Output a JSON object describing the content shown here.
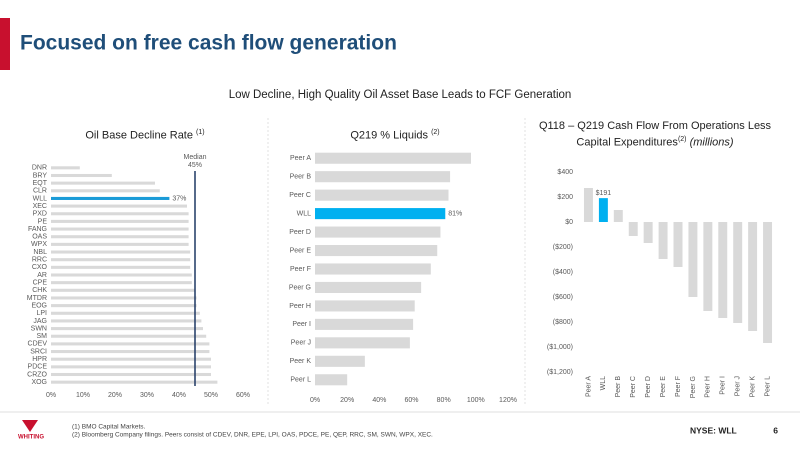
{
  "header": {
    "title": "Focused on free cash flow generation",
    "subtitle": "Low Decline, High Quality Oil Asset Base Leads to FCF Generation"
  },
  "chart_data": [
    {
      "type": "hbar",
      "title": "Oil Base Decline Rate",
      "title_note": "(1)",
      "categories": [
        "DNR",
        "BRY",
        "EQT",
        "CLR",
        "WLL",
        "XEC",
        "PXD",
        "PE",
        "FANG",
        "OAS",
        "WPX",
        "NBL",
        "RRC",
        "CXO",
        "AR",
        "CPE",
        "CHK",
        "MTDR",
        "EOG",
        "LPI",
        "JAG",
        "SWN",
        "SM",
        "CDEV",
        "SRCI",
        "HPR",
        "PDCE",
        "CRZO",
        "XOG"
      ],
      "values": [
        9,
        19,
        32.5,
        34,
        37,
        42.5,
        43,
        43,
        43,
        43,
        43,
        43.5,
        43.5,
        43.5,
        44,
        44,
        45,
        45.5,
        45.5,
        46.5,
        47,
        47.5,
        48.5,
        49.5,
        49.5,
        50,
        50,
        50,
        52
      ],
      "value_labels": [
        null,
        null,
        null,
        null,
        "37%",
        null,
        null,
        null,
        null,
        null,
        null,
        null,
        null,
        null,
        null,
        null,
        null,
        null,
        null,
        null,
        null,
        null,
        null,
        null,
        null,
        null,
        null,
        null,
        null
      ],
      "colors": [
        "#d9d9d9",
        "#d9d9d9",
        "#d9d9d9",
        "#d9d9d9",
        "#1a9bd7",
        "#d9d9d9",
        "#d9d9d9",
        "#d9d9d9",
        "#d9d9d9",
        "#d9d9d9",
        "#d9d9d9",
        "#d9d9d9",
        "#d9d9d9",
        "#d9d9d9",
        "#d9d9d9",
        "#d9d9d9",
        "#d9d9d9",
        "#d9d9d9",
        "#d9d9d9",
        "#d9d9d9",
        "#d9d9d9",
        "#d9d9d9",
        "#d9d9d9",
        "#d9d9d9",
        "#d9d9d9",
        "#d9d9d9",
        "#d9d9d9",
        "#d9d9d9",
        "#d9d9d9"
      ],
      "xlim": [
        0,
        60
      ],
      "xticks": [
        {
          "value": 0,
          "label": "0%"
        },
        {
          "value": 10,
          "label": "10%"
        },
        {
          "value": 20,
          "label": "20%"
        },
        {
          "value": 30,
          "label": "30%"
        },
        {
          "value": 40,
          "label": "40%"
        },
        {
          "value": 50,
          "label": "50%"
        },
        {
          "value": 60,
          "label": "60%"
        }
      ],
      "median": {
        "label": "Median",
        "value": 45,
        "value_label": "45%",
        "color": "#1f3864"
      }
    },
    {
      "type": "hbar",
      "title": "Q219 % Liquids",
      "title_note": "(2)",
      "categories": [
        "Peer A",
        "Peer B",
        "Peer C",
        "WLL",
        "Peer D",
        "Peer E",
        "Peer F",
        "Peer G",
        "Peer H",
        "Peer I",
        "Peer J",
        "Peer K",
        "Peer L"
      ],
      "values": [
        97,
        84,
        83,
        81,
        78,
        76,
        72,
        66,
        62,
        61,
        59,
        31,
        20
      ],
      "value_labels": [
        null,
        null,
        null,
        "81%",
        null,
        null,
        null,
        null,
        null,
        null,
        null,
        null,
        null
      ],
      "colors": [
        "#d9d9d9",
        "#d9d9d9",
        "#d9d9d9",
        "#00b0f0",
        "#d9d9d9",
        "#d9d9d9",
        "#d9d9d9",
        "#d9d9d9",
        "#d9d9d9",
        "#d9d9d9",
        "#d9d9d9",
        "#d9d9d9",
        "#d9d9d9"
      ],
      "xlim": [
        0,
        120
      ],
      "xticks": [
        {
          "value": 0,
          "label": "0%"
        },
        {
          "value": 20,
          "label": "20%"
        },
        {
          "value": 40,
          "label": "40%"
        },
        {
          "value": 60,
          "label": "60%"
        },
        {
          "value": 80,
          "label": "80%"
        },
        {
          "value": 100,
          "label": "100%"
        },
        {
          "value": 120,
          "label": "120%"
        }
      ]
    },
    {
      "type": "bar",
      "title": "Q118 – Q219 Cash Flow From Operations Less Capital Expenditures",
      "title_note": "(2)",
      "title_unit": "(millions)",
      "categories": [
        "Peer A",
        "WLL",
        "Peer B",
        "Peer C",
        "Peer D",
        "Peer E",
        "Peer F",
        "Peer G",
        "Peer H",
        "Peer I",
        "Peer J",
        "Peer K",
        "Peer L"
      ],
      "values": [
        272,
        191,
        96,
        -112,
        -168,
        -296,
        -360,
        -600,
        -712,
        -768,
        -808,
        -872,
        -968
      ],
      "value_labels": [
        null,
        "$191",
        null,
        null,
        null,
        null,
        null,
        null,
        null,
        null,
        null,
        null,
        null
      ],
      "colors": [
        "#d9d9d9",
        "#00b0f0",
        "#d9d9d9",
        "#d9d9d9",
        "#d9d9d9",
        "#d9d9d9",
        "#d9d9d9",
        "#d9d9d9",
        "#d9d9d9",
        "#d9d9d9",
        "#d9d9d9",
        "#d9d9d9",
        "#d9d9d9"
      ],
      "ylim": [
        -1200,
        400
      ],
      "yticks": [
        {
          "value": 400,
          "label": "$400"
        },
        {
          "value": 200,
          "label": "$200"
        },
        {
          "value": 0,
          "label": "$0"
        },
        {
          "value": -200,
          "label": "($200)"
        },
        {
          "value": -400,
          "label": "($400)"
        },
        {
          "value": -600,
          "label": "($600)"
        },
        {
          "value": -800,
          "label": "($800)"
        },
        {
          "value": -1000,
          "label": "($1,000)"
        },
        {
          "value": -1200,
          "label": "($1,200)"
        }
      ]
    }
  ],
  "footer": {
    "logo": "WHITING",
    "footnotes": [
      "(1) BMO Capital Markets.",
      "(2) Bloomberg Company filings. Peers consist of CDEV, DNR, EPE, LPI, OAS, PDCE, PE, QEP, RRC, SM, SWN, WPX, XEC."
    ],
    "ticker": "NYSE: WLL",
    "page": "6"
  }
}
